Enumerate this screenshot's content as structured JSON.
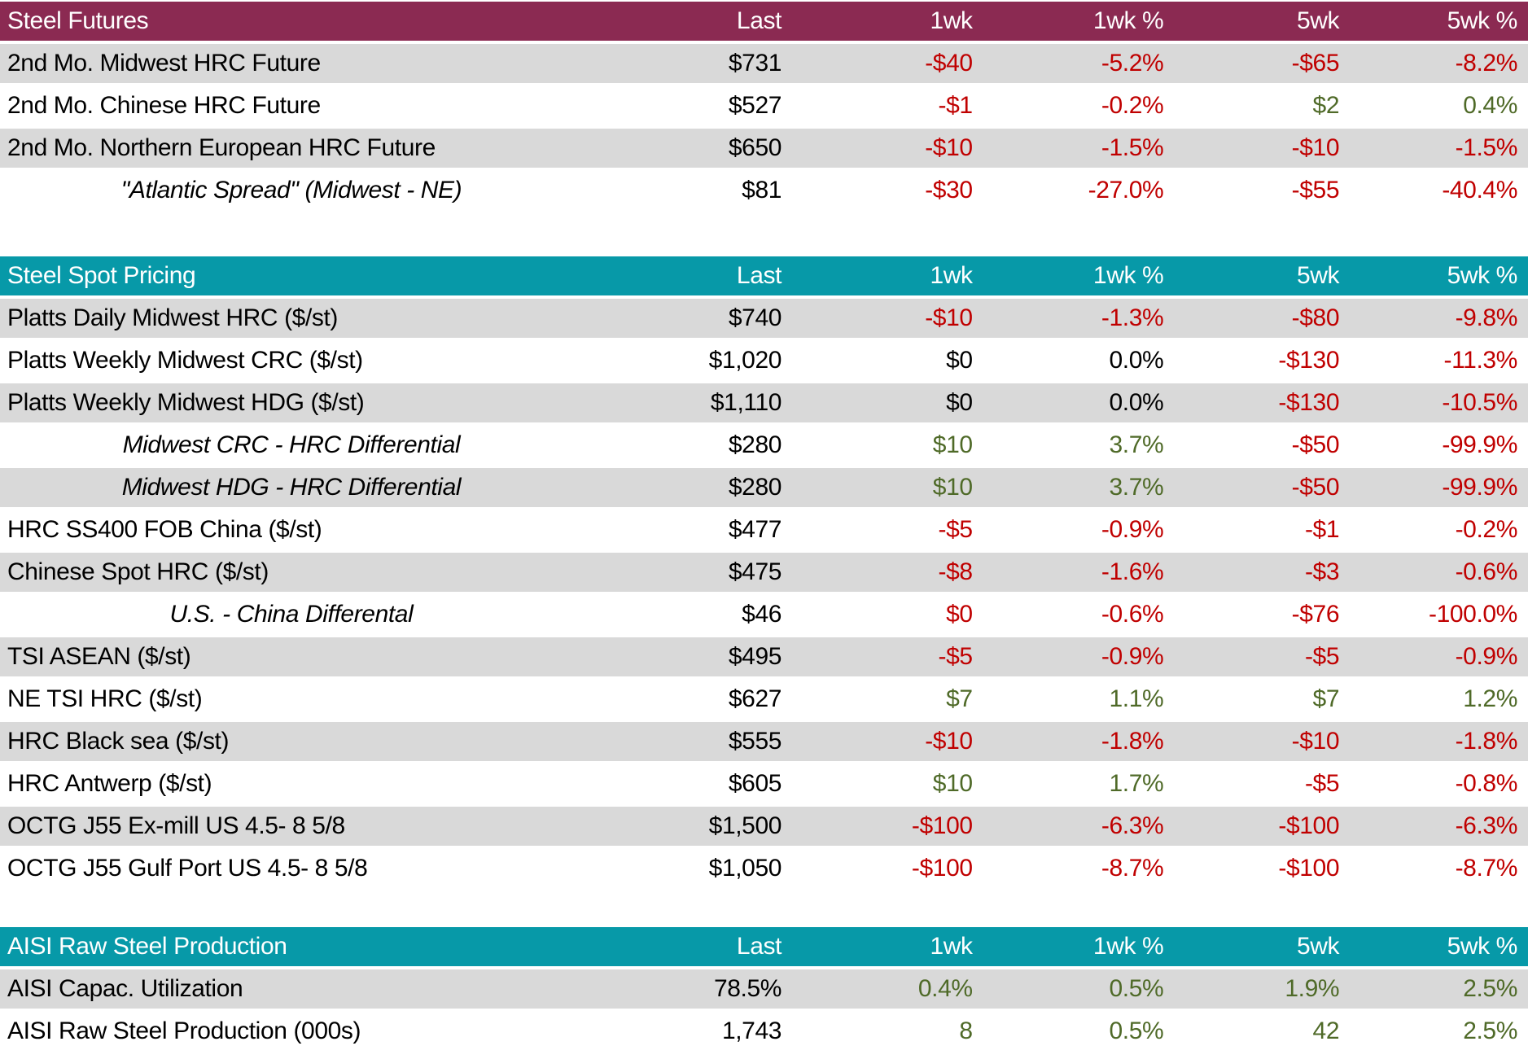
{
  "colors": {
    "maroon_header": "#8B2A52",
    "teal_header": "#0799A8",
    "negative_red": "#C00000",
    "positive_green": "#4F6A28",
    "shaded_row": "#D9D9D9",
    "header_text": "#FFFFFF",
    "body_text": "#000000"
  },
  "chart_data": [
    {
      "type": "table",
      "title": "Steel Futures",
      "theme": "maroon",
      "columns": [
        "Last",
        "1wk",
        "1wk %",
        "5wk",
        "5wk %"
      ],
      "rows": [
        {
          "name": "2nd Mo. Midwest HRC Future",
          "sub": false,
          "values": [
            "$731",
            "-$40",
            "-5.2%",
            "-$65",
            "-8.2%"
          ],
          "colors": [
            "black",
            "red",
            "red",
            "red",
            "red"
          ]
        },
        {
          "name": "2nd Mo. Chinese HRC Future",
          "sub": false,
          "values": [
            "$527",
            "-$1",
            "-0.2%",
            "$2",
            "0.4%"
          ],
          "colors": [
            "black",
            "red",
            "red",
            "green",
            "green"
          ]
        },
        {
          "name": "2nd Mo. Northern European HRC Future",
          "sub": false,
          "values": [
            "$650",
            "-$10",
            "-1.5%",
            "-$10",
            "-1.5%"
          ],
          "colors": [
            "black",
            "red",
            "red",
            "red",
            "red"
          ]
        },
        {
          "name": "\"Atlantic Spread\" (Midwest - NE)",
          "sub": true,
          "values": [
            "$81",
            "-$30",
            "-27.0%",
            "-$55",
            "-40.4%"
          ],
          "colors": [
            "black",
            "red",
            "red",
            "red",
            "red"
          ]
        }
      ]
    },
    {
      "type": "table",
      "title": "Steel Spot Pricing",
      "theme": "teal",
      "columns": [
        "Last",
        "1wk",
        "1wk %",
        "5wk",
        "5wk %"
      ],
      "rows": [
        {
          "name": "Platts Daily Midwest HRC ($/st)",
          "sub": false,
          "values": [
            "$740",
            "-$10",
            "-1.3%",
            "-$80",
            "-9.8%"
          ],
          "colors": [
            "black",
            "red",
            "red",
            "red",
            "red"
          ]
        },
        {
          "name": "Platts Weekly Midwest CRC ($/st)",
          "sub": false,
          "values": [
            "$1,020",
            "$0",
            "0.0%",
            "-$130",
            "-11.3%"
          ],
          "colors": [
            "black",
            "black",
            "black",
            "red",
            "red"
          ]
        },
        {
          "name": "Platts Weekly Midwest HDG ($/st)",
          "sub": false,
          "values": [
            "$1,110",
            "$0",
            "0.0%",
            "-$130",
            "-10.5%"
          ],
          "colors": [
            "black",
            "black",
            "black",
            "red",
            "red"
          ]
        },
        {
          "name": "Midwest CRC - HRC Differential",
          "sub": true,
          "values": [
            "$280",
            "$10",
            "3.7%",
            "-$50",
            "-99.9%"
          ],
          "colors": [
            "black",
            "green",
            "green",
            "red",
            "red"
          ]
        },
        {
          "name": "Midwest HDG - HRC Differential",
          "sub": true,
          "values": [
            "$280",
            "$10",
            "3.7%",
            "-$50",
            "-99.9%"
          ],
          "colors": [
            "black",
            "green",
            "green",
            "red",
            "red"
          ]
        },
        {
          "name": "HRC SS400 FOB China ($/st)",
          "sub": false,
          "values": [
            "$477",
            "-$5",
            "-0.9%",
            "-$1",
            "-0.2%"
          ],
          "colors": [
            "black",
            "red",
            "red",
            "red",
            "red"
          ]
        },
        {
          "name": "Chinese Spot HRC ($/st)",
          "sub": false,
          "values": [
            "$475",
            "-$8",
            "-1.6%",
            "-$3",
            "-0.6%"
          ],
          "colors": [
            "black",
            "red",
            "red",
            "red",
            "red"
          ]
        },
        {
          "name": "U.S. - China Differental",
          "sub": true,
          "values": [
            "$46",
            "$0",
            "-0.6%",
            "-$76",
            "-100.0%"
          ],
          "colors": [
            "black",
            "red",
            "red",
            "red",
            "red"
          ]
        },
        {
          "name": "TSI ASEAN ($/st)",
          "sub": false,
          "values": [
            "$495",
            "-$5",
            "-0.9%",
            "-$5",
            "-0.9%"
          ],
          "colors": [
            "black",
            "red",
            "red",
            "red",
            "red"
          ]
        },
        {
          "name": "NE TSI HRC ($/st)",
          "sub": false,
          "values": [
            "$627",
            "$7",
            "1.1%",
            "$7",
            "1.2%"
          ],
          "colors": [
            "black",
            "green",
            "green",
            "green",
            "green"
          ]
        },
        {
          "name": "HRC Black sea ($/st)",
          "sub": false,
          "values": [
            "$555",
            "-$10",
            "-1.8%",
            "-$10",
            "-1.8%"
          ],
          "colors": [
            "black",
            "red",
            "red",
            "red",
            "red"
          ]
        },
        {
          "name": "HRC Antwerp ($/st)",
          "sub": false,
          "values": [
            "$605",
            "$10",
            "1.7%",
            "-$5",
            "-0.8%"
          ],
          "colors": [
            "black",
            "green",
            "green",
            "red",
            "red"
          ]
        },
        {
          "name": "OCTG J55 Ex-mill US 4.5- 8 5/8",
          "sub": false,
          "values": [
            "$1,500",
            "-$100",
            "-6.3%",
            "-$100",
            "-6.3%"
          ],
          "colors": [
            "black",
            "red",
            "red",
            "red",
            "red"
          ]
        },
        {
          "name": "OCTG J55 Gulf Port US 4.5- 8 5/8",
          "sub": false,
          "values": [
            "$1,050",
            "-$100",
            "-8.7%",
            "-$100",
            "-8.7%"
          ],
          "colors": [
            "black",
            "red",
            "red",
            "red",
            "red"
          ]
        }
      ]
    },
    {
      "type": "table",
      "title": "AISI Raw Steel Production",
      "theme": "teal",
      "columns": [
        "Last",
        "1wk",
        "1wk %",
        "5wk",
        "5wk %"
      ],
      "rows": [
        {
          "name": "AISI Capac. Utilization",
          "sub": false,
          "values": [
            "78.5%",
            "0.4%",
            "0.5%",
            "1.9%",
            "2.5%"
          ],
          "colors": [
            "black",
            "green",
            "green",
            "green",
            "green"
          ]
        },
        {
          "name": "AISI Raw Steel Production (000s)",
          "sub": false,
          "values": [
            "1,743",
            "8",
            "0.5%",
            "42",
            "2.5%"
          ],
          "colors": [
            "black",
            "green",
            "green",
            "green",
            "green"
          ]
        }
      ]
    }
  ]
}
